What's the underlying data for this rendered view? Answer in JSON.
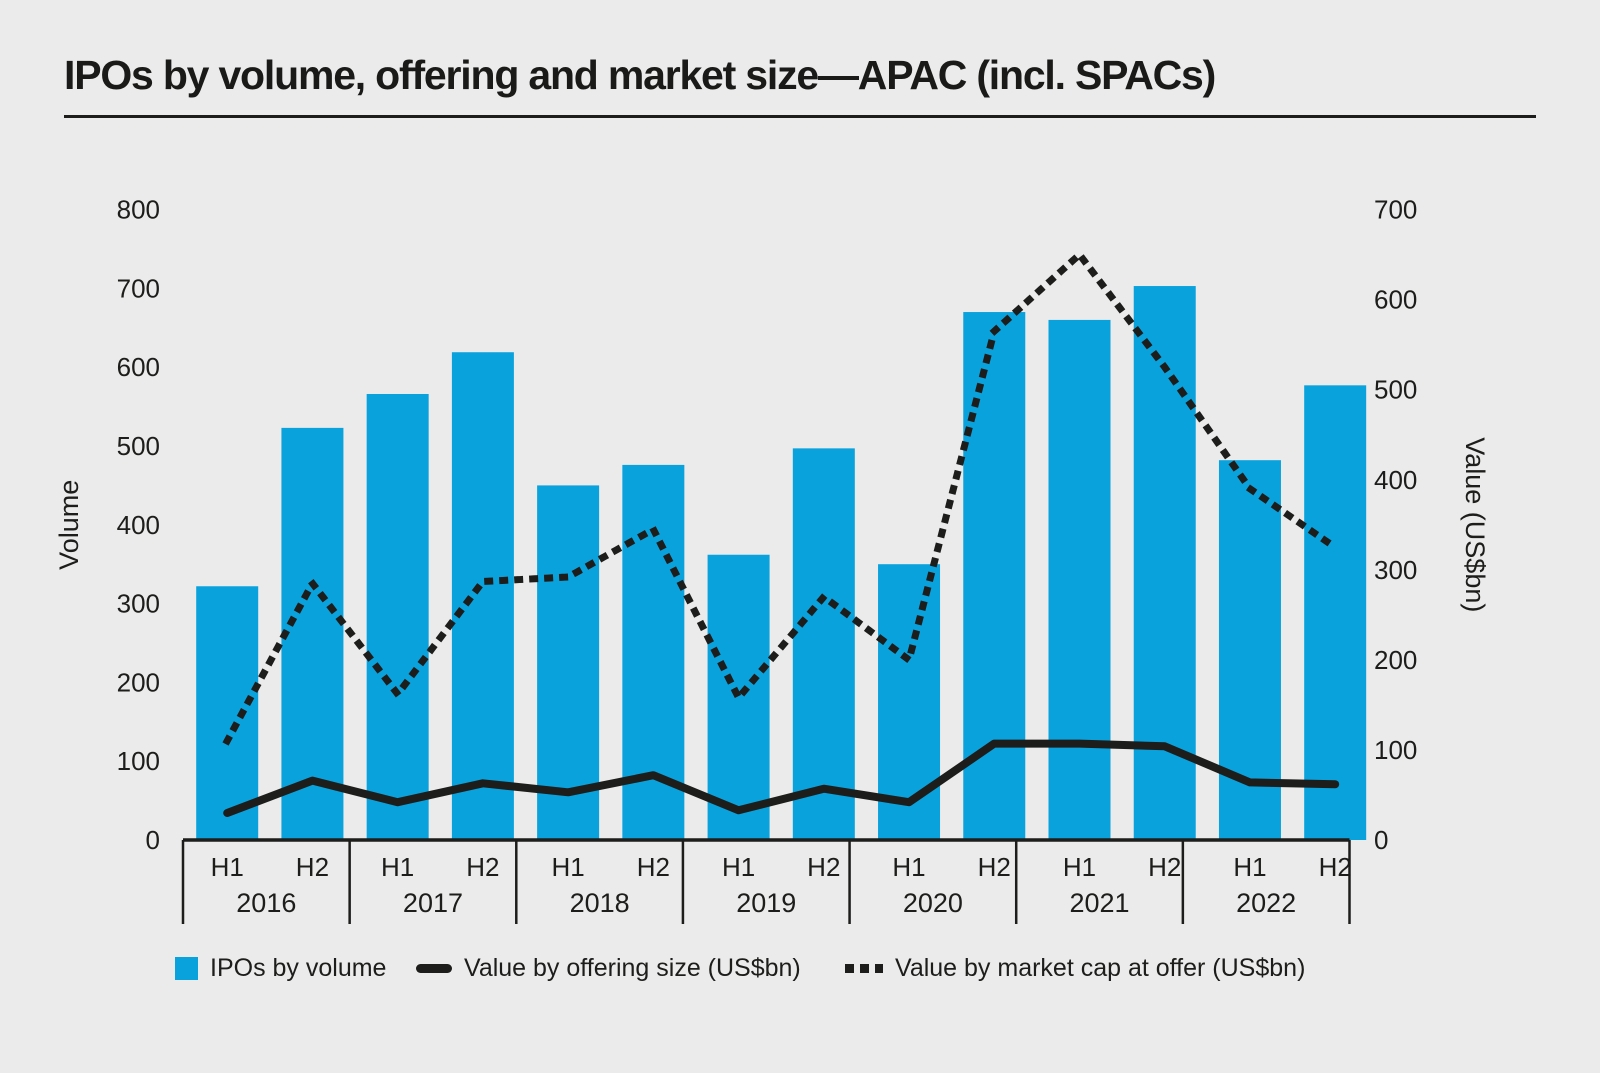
{
  "page": {
    "title": "IPOs by volume, offering and market size—APAC (incl. SPACs)"
  },
  "colors": {
    "background": "#EBEBEB",
    "bar_blue": "#0AA2DC",
    "ink": "#1D1D1B"
  },
  "chart_data": {
    "type": "combo",
    "years": [
      "2016",
      "2017",
      "2018",
      "2019",
      "2020",
      "2021",
      "2022"
    ],
    "half_labels": [
      "H1",
      "H2"
    ],
    "categories": [
      "2016 H1",
      "2016 H2",
      "2017 H1",
      "2017 H2",
      "2018 H1",
      "2018 H2",
      "2019 H1",
      "2019 H2",
      "2020 H1",
      "2020 H2",
      "2021 H1",
      "2021 H2",
      "2022 H1",
      "2022 H2"
    ],
    "series": [
      {
        "name": "IPOs by volume",
        "type": "bar",
        "axis": "left",
        "color": "#0AA2DC",
        "values": [
          322,
          523,
          566,
          619,
          450,
          476,
          362,
          497,
          350,
          670,
          660,
          703,
          482,
          577
        ]
      },
      {
        "name": "Value by offering size (US$bn)",
        "type": "line",
        "style": "solid",
        "axis": "right",
        "color": "#1D1D1B",
        "values": [
          30,
          66,
          42,
          63,
          53,
          72,
          33,
          57,
          42,
          107,
          107,
          104,
          64,
          62
        ]
      },
      {
        "name": "Value by market cap at offer (US$bn)",
        "type": "line",
        "style": "dotted",
        "axis": "right",
        "color": "#1D1D1B",
        "values": [
          110,
          285,
          162,
          287,
          292,
          345,
          158,
          270,
          200,
          565,
          650,
          525,
          390,
          325
        ]
      }
    ],
    "left_axis": {
      "label": "Volume",
      "min": 0,
      "max": 800,
      "step": 100
    },
    "right_axis": {
      "label": "Value (US$bn)",
      "min": 0,
      "max": 700,
      "step": 100
    },
    "grid": false,
    "legend_position": "bottom"
  }
}
